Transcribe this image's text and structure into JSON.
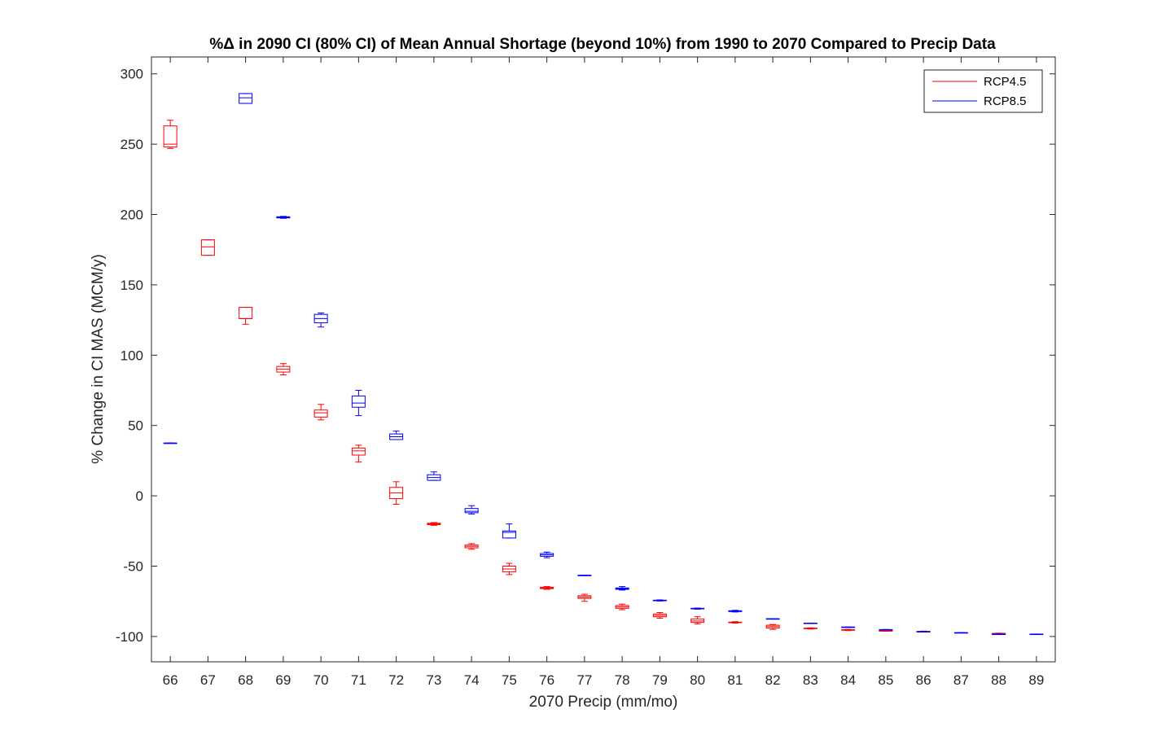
{
  "chart_data": {
    "type": "box",
    "title": "%Δ in 2090 CI (80% CI) of Mean Annual Shortage (beyond 10%) from 1990 to 2070 Compared to Precip Data",
    "xlabel": "2070 Precip (mm/mo)",
    "ylabel": "% Change in CI MAS (MCM/y)",
    "xlim": [
      65.5,
      89.5
    ],
    "ylim": [
      -118,
      312
    ],
    "yticks": [
      -100,
      -50,
      0,
      50,
      100,
      150,
      200,
      250,
      300
    ],
    "categories": [
      66,
      67,
      68,
      69,
      70,
      71,
      72,
      73,
      74,
      75,
      76,
      77,
      78,
      79,
      80,
      81,
      82,
      83,
      84,
      85,
      86,
      87,
      88,
      89
    ],
    "legend_position": "top-right",
    "series": [
      {
        "name": "RCP4.5",
        "color": "#ff0000",
        "boxes": [
          {
            "x": 66,
            "min": 247,
            "q1": 248,
            "median": 250,
            "q3": 263,
            "max": 267
          },
          {
            "x": 67,
            "min": 171,
            "q1": 171,
            "median": 177,
            "q3": 182,
            "max": 182
          },
          {
            "x": 68,
            "min": 122,
            "q1": 126,
            "median": 126,
            "q3": 134,
            "max": 134
          },
          {
            "x": 69,
            "min": 86,
            "q1": 88,
            "median": 90,
            "q3": 92,
            "max": 94
          },
          {
            "x": 70,
            "min": 54,
            "q1": 56,
            "median": 59,
            "q3": 61,
            "max": 65
          },
          {
            "x": 71,
            "min": 24,
            "q1": 29,
            "median": 32,
            "q3": 34,
            "max": 36
          },
          {
            "x": 72,
            "min": -6,
            "q1": -2,
            "median": 2,
            "q3": 6,
            "max": 10
          },
          {
            "x": 73,
            "min": -21,
            "q1": -20.5,
            "median": -20,
            "q3": -19.5,
            "max": -19
          },
          {
            "x": 74,
            "min": -38,
            "q1": -37,
            "median": -36,
            "q3": -35,
            "max": -34
          },
          {
            "x": 75,
            "min": -56,
            "q1": -54,
            "median": -52,
            "q3": -50,
            "max": -48
          },
          {
            "x": 76,
            "min": -66.5,
            "q1": -66,
            "median": -65.5,
            "q3": -65,
            "max": -64.5
          },
          {
            "x": 77,
            "min": -75,
            "q1": -73,
            "median": -72,
            "q3": -71,
            "max": -70
          },
          {
            "x": 78,
            "min": -81,
            "q1": -80,
            "median": -79,
            "q3": -78,
            "max": -77
          },
          {
            "x": 79,
            "min": -87,
            "q1": -86,
            "median": -85,
            "q3": -84,
            "max": -83
          },
          {
            "x": 80,
            "min": -91,
            "q1": -90,
            "median": -89,
            "q3": -87.5,
            "max": -86
          },
          {
            "x": 81,
            "min": -90.5,
            "q1": -90.2,
            "median": -90,
            "q3": -89.8,
            "max": -89.5
          },
          {
            "x": 82,
            "min": -95,
            "q1": -94,
            "median": -93,
            "q3": -92,
            "max": -91.5
          },
          {
            "x": 83,
            "min": -94.7,
            "q1": -94.5,
            "median": -94.3,
            "q3": -94.1,
            "max": -93.9
          },
          {
            "x": 84,
            "min": -95.8,
            "q1": -95.6,
            "median": -95.4,
            "q3": -95.2,
            "max": -95
          },
          {
            "x": 85,
            "min": -96.3,
            "q1": -96.1,
            "median": -96,
            "q3": -95.9,
            "max": -95.7
          },
          {
            "x": 86,
            "min": -96.8,
            "q1": -96.6,
            "median": -96.5,
            "q3": -96.4,
            "max": -96.2
          },
          {
            "x": 88,
            "min": -98.2,
            "q1": -98,
            "median": -97.9,
            "q3": -97.8,
            "max": -97.6
          }
        ]
      },
      {
        "name": "RCP8.5",
        "color": "#0000ff",
        "boxes": [
          {
            "x": 66,
            "min": 37.5,
            "q1": 37.5,
            "median": 37.5,
            "q3": 37.5,
            "max": 37.5
          },
          {
            "x": 68,
            "min": 279,
            "q1": 279,
            "median": 283,
            "q3": 286,
            "max": 286
          },
          {
            "x": 69,
            "min": 197.3,
            "q1": 197.6,
            "median": 198,
            "q3": 198.4,
            "max": 198.7
          },
          {
            "x": 70,
            "min": 120,
            "q1": 123,
            "median": 126,
            "q3": 129,
            "max": 130
          },
          {
            "x": 71,
            "min": 57,
            "q1": 63,
            "median": 66,
            "q3": 71,
            "max": 75
          },
          {
            "x": 72,
            "min": 40,
            "q1": 40,
            "median": 42,
            "q3": 44,
            "max": 46
          },
          {
            "x": 73,
            "min": 11,
            "q1": 11,
            "median": 13,
            "q3": 15,
            "max": 17
          },
          {
            "x": 74,
            "min": -13,
            "q1": -12,
            "median": -11,
            "q3": -9,
            "max": -7
          },
          {
            "x": 75,
            "min": -30,
            "q1": -30,
            "median": -26,
            "q3": -25,
            "max": -20
          },
          {
            "x": 76,
            "min": -44,
            "q1": -43,
            "median": -42,
            "q3": -41,
            "max": -40
          },
          {
            "x": 77,
            "min": -56.5,
            "q1": -56.5,
            "median": -56.5,
            "q3": -56.5,
            "max": -56.5
          },
          {
            "x": 78,
            "min": -67,
            "q1": -66.5,
            "median": -66,
            "q3": -65.5,
            "max": -64.5
          },
          {
            "x": 79,
            "min": -74.8,
            "q1": -74.6,
            "median": -74.4,
            "q3": -74.2,
            "max": -74
          },
          {
            "x": 80,
            "min": -80.6,
            "q1": -80.4,
            "median": -80.2,
            "q3": -80,
            "max": -79.8
          },
          {
            "x": 81,
            "min": -82.6,
            "q1": -82.3,
            "median": -82,
            "q3": -81.7,
            "max": -81.4
          },
          {
            "x": 82,
            "min": -87.4,
            "q1": -87.4,
            "median": -87.4,
            "q3": -87.4,
            "max": -87.4
          },
          {
            "x": 83,
            "min": -90.5,
            "q1": -90.5,
            "median": -90.5,
            "q3": -90.5,
            "max": -90.5
          },
          {
            "x": 84,
            "min": -93.3,
            "q1": -93.3,
            "median": -93.3,
            "q3": -93.3,
            "max": -93.3
          },
          {
            "x": 85,
            "min": -95.4,
            "q1": -95.3,
            "median": -95.2,
            "q3": -95.1,
            "max": -95
          },
          {
            "x": 86,
            "min": -96.8,
            "q1": -96.7,
            "median": -96.6,
            "q3": -96.5,
            "max": -96.4
          },
          {
            "x": 87,
            "min": -97.3,
            "q1": -97.3,
            "median": -97.3,
            "q3": -97.3,
            "max": -97.3
          },
          {
            "x": 88,
            "min": -98.3,
            "q1": -98.3,
            "median": -98.3,
            "q3": -98.3,
            "max": -98.3
          },
          {
            "x": 89,
            "min": -98.3,
            "q1": -98.3,
            "median": -98.3,
            "q3": -98.3,
            "max": -98.3
          }
        ]
      }
    ]
  }
}
